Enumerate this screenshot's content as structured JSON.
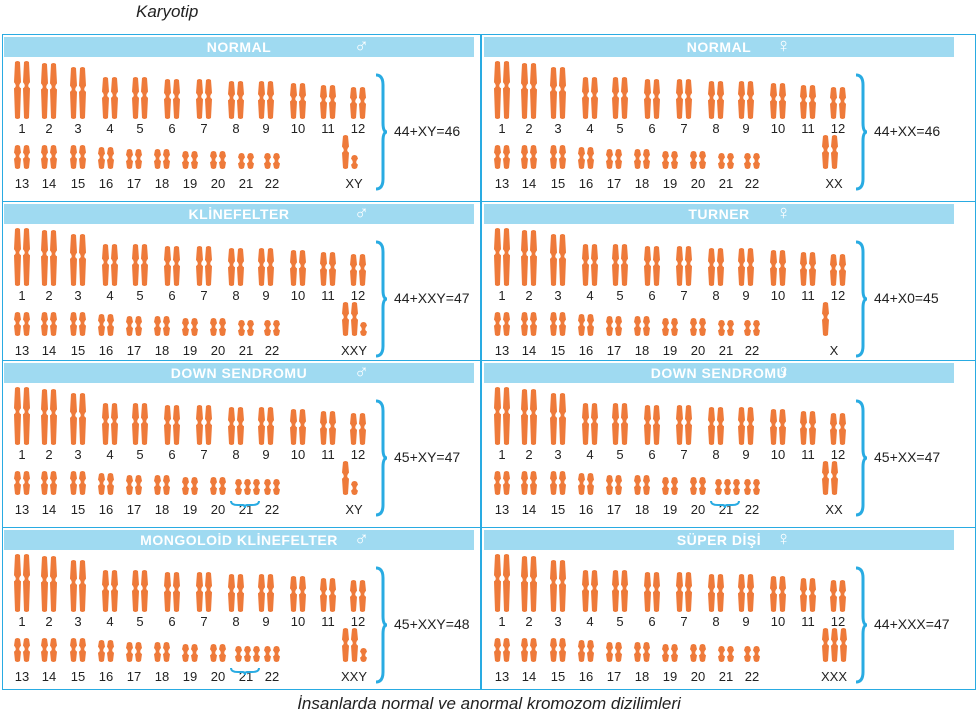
{
  "title": "Karyotip",
  "caption": "İnsanlarda normal ve anormal kromozom dizilimleri",
  "colors": {
    "chromosome": "#ee7a3a",
    "accent": "#29abe2",
    "header_bar": "#9fdaf1"
  },
  "panels": [
    {
      "title": "NORMAL",
      "sex_icon": "male-icon",
      "sex_label": "XY",
      "formula": "44+XY=46",
      "trisomy": ""
    },
    {
      "title": "NORMAL",
      "sex_icon": "female-icon",
      "sex_label": "XX",
      "formula": "44+XX=46",
      "trisomy": ""
    },
    {
      "title": "KLİNEFELTER",
      "sex_icon": "male-icon",
      "sex_label": "XXY",
      "formula": "44+XXY=47",
      "trisomy": ""
    },
    {
      "title": "TURNER",
      "sex_icon": "female-icon",
      "sex_label": "X",
      "formula": "44+X0=45",
      "trisomy": ""
    },
    {
      "title": "DOWN SENDROMU",
      "sex_icon": "male-icon",
      "sex_label": "XY",
      "formula": "45+XY=47",
      "trisomy": "21"
    },
    {
      "title": "DOWN SENDROMU",
      "sex_icon": "female-icon",
      "sex_label": "XX",
      "formula": "45+XX=47",
      "trisomy": "21"
    },
    {
      "title": "MONGOLOİD KLİNEFELTER",
      "sex_icon": "male-icon",
      "sex_label": "XXY",
      "formula": "45+XXY=48",
      "trisomy": "21"
    },
    {
      "title": "SÜPER DİŞİ",
      "sex_icon": "female-icon",
      "sex_label": "XXX",
      "formula": "44+XXX=47",
      "trisomy": ""
    }
  ],
  "row1_numbers": [
    "1",
    "2",
    "3",
    "4",
    "5",
    "6",
    "7",
    "8",
    "9",
    "10",
    "11",
    "12"
  ],
  "row2_numbers": [
    "13",
    "14",
    "15",
    "16",
    "17",
    "18",
    "19",
    "20",
    "21",
    "22"
  ]
}
